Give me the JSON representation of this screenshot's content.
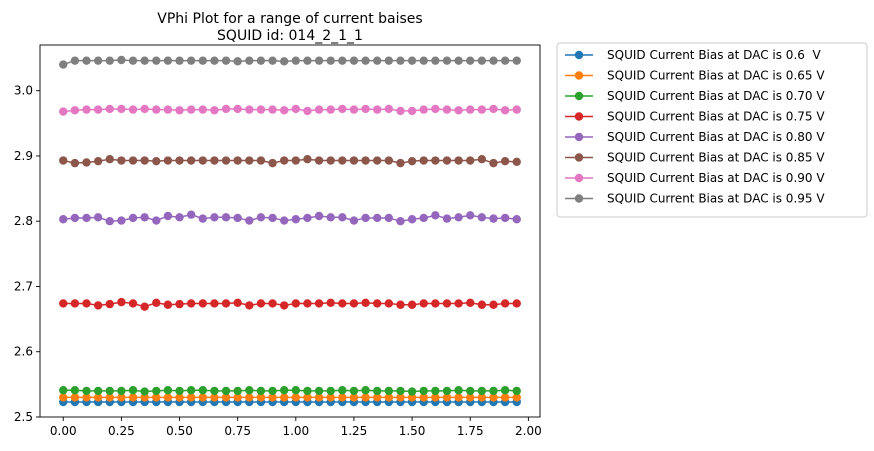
{
  "chart_data": {
    "type": "line",
    "title": "VPhi Plot for a range of current baises",
    "subtitle": "SQUID id: 014_2_1_1",
    "xlabel": "",
    "ylabel": "",
    "xlim": [
      -0.1,
      2.05
    ],
    "ylim": [
      2.5,
      3.07
    ],
    "xticks": [
      "0.00",
      "0.25",
      "0.50",
      "0.75",
      "1.00",
      "1.25",
      "1.50",
      "1.75",
      "2.00"
    ],
    "yticks": [
      "2.5",
      "2.6",
      "2.7",
      "2.8",
      "2.9",
      "3.0"
    ],
    "grid": false,
    "legend_position": "outside-right",
    "x": [
      0.0,
      0.05,
      0.1,
      0.15,
      0.2,
      0.25,
      0.3,
      0.35,
      0.4,
      0.45,
      0.5,
      0.55,
      0.6,
      0.65,
      0.7,
      0.75,
      0.8,
      0.85,
      0.9,
      0.95,
      1.0,
      1.05,
      1.1,
      1.15,
      1.2,
      1.25,
      1.3,
      1.35,
      1.4,
      1.45,
      1.5,
      1.55,
      1.6,
      1.65,
      1.7,
      1.75,
      1.8,
      1.85,
      1.9,
      1.95
    ],
    "series": [
      {
        "name": "SQUID Current Bias at DAC is 0.6  V",
        "color": "#1f77b4",
        "values": [
          2.523,
          2.523,
          2.523,
          2.523,
          2.523,
          2.523,
          2.523,
          2.523,
          2.523,
          2.523,
          2.523,
          2.523,
          2.523,
          2.523,
          2.523,
          2.523,
          2.523,
          2.523,
          2.523,
          2.523,
          2.523,
          2.523,
          2.523,
          2.523,
          2.523,
          2.523,
          2.523,
          2.523,
          2.523,
          2.523,
          2.523,
          2.523,
          2.523,
          2.523,
          2.523,
          2.523,
          2.523,
          2.523,
          2.523,
          2.523
        ]
      },
      {
        "name": "SQUID Current Bias at DAC is 0.65 V",
        "color": "#ff7f0e",
        "values": [
          2.53,
          2.53,
          2.53,
          2.53,
          2.53,
          2.53,
          2.53,
          2.53,
          2.53,
          2.53,
          2.53,
          2.53,
          2.53,
          2.53,
          2.53,
          2.53,
          2.53,
          2.53,
          2.53,
          2.53,
          2.53,
          2.53,
          2.53,
          2.53,
          2.53,
          2.53,
          2.53,
          2.53,
          2.53,
          2.53,
          2.53,
          2.53,
          2.53,
          2.53,
          2.53,
          2.53,
          2.53,
          2.53,
          2.53,
          2.53
        ]
      },
      {
        "name": "SQUID Current Bias at DAC is 0.70 V",
        "color": "#2ca02c",
        "values": [
          2.541,
          2.541,
          2.54,
          2.54,
          2.54,
          2.54,
          2.541,
          2.539,
          2.54,
          2.541,
          2.54,
          2.541,
          2.541,
          2.54,
          2.54,
          2.54,
          2.541,
          2.54,
          2.54,
          2.541,
          2.541,
          2.54,
          2.54,
          2.54,
          2.541,
          2.54,
          2.541,
          2.54,
          2.54,
          2.54,
          2.539,
          2.54,
          2.54,
          2.54,
          2.541,
          2.54,
          2.54,
          2.54,
          2.541,
          2.54
        ]
      },
      {
        "name": "SQUID Current Bias at DAC is 0.75 V",
        "color": "#d62728",
        "values": [
          2.674,
          2.674,
          2.674,
          2.671,
          2.673,
          2.676,
          2.674,
          2.669,
          2.675,
          2.672,
          2.673,
          2.674,
          2.674,
          2.674,
          2.674,
          2.675,
          2.671,
          2.674,
          2.674,
          2.671,
          2.674,
          2.674,
          2.674,
          2.675,
          2.674,
          2.674,
          2.675,
          2.674,
          2.674,
          2.672,
          2.672,
          2.674,
          2.674,
          2.674,
          2.674,
          2.675,
          2.672,
          2.672,
          2.674,
          2.674
        ]
      },
      {
        "name": "SQUID Current Bias at DAC is 0.80 V",
        "color": "#9467bd",
        "values": [
          2.803,
          2.805,
          2.805,
          2.806,
          2.8,
          2.801,
          2.805,
          2.806,
          2.801,
          2.808,
          2.806,
          2.81,
          2.804,
          2.806,
          2.806,
          2.805,
          2.801,
          2.806,
          2.805,
          2.801,
          2.803,
          2.805,
          2.808,
          2.806,
          2.806,
          2.801,
          2.805,
          2.805,
          2.805,
          2.8,
          2.803,
          2.805,
          2.809,
          2.804,
          2.806,
          2.809,
          2.806,
          2.804,
          2.805,
          2.803
        ]
      },
      {
        "name": "SQUID Current Bias at DAC is 0.85 V",
        "color": "#8c564b",
        "values": [
          2.893,
          2.889,
          2.89,
          2.892,
          2.895,
          2.893,
          2.893,
          2.893,
          2.892,
          2.893,
          2.893,
          2.893,
          2.893,
          2.893,
          2.893,
          2.893,
          2.893,
          2.893,
          2.889,
          2.893,
          2.893,
          2.895,
          2.893,
          2.893,
          2.893,
          2.893,
          2.893,
          2.893,
          2.893,
          2.889,
          2.892,
          2.893,
          2.893,
          2.893,
          2.893,
          2.893,
          2.895,
          2.889,
          2.892,
          2.891
        ]
      },
      {
        "name": "SQUID Current Bias at DAC is 0.90 V",
        "color": "#e377c2",
        "values": [
          2.968,
          2.97,
          2.971,
          2.971,
          2.972,
          2.972,
          2.971,
          2.972,
          2.971,
          2.971,
          2.97,
          2.971,
          2.971,
          2.97,
          2.972,
          2.972,
          2.971,
          2.971,
          2.971,
          2.97,
          2.972,
          2.969,
          2.971,
          2.971,
          2.972,
          2.971,
          2.972,
          2.971,
          2.972,
          2.969,
          2.969,
          2.971,
          2.972,
          2.971,
          2.97,
          2.971,
          2.971,
          2.972,
          2.97,
          2.971
        ]
      },
      {
        "name": "SQUID Current Bias at DAC is 0.95 V",
        "color": "#7f7f7f",
        "values": [
          3.04,
          3.046,
          3.046,
          3.046,
          3.046,
          3.047,
          3.046,
          3.046,
          3.046,
          3.046,
          3.046,
          3.046,
          3.046,
          3.046,
          3.046,
          3.045,
          3.046,
          3.046,
          3.046,
          3.045,
          3.046,
          3.046,
          3.046,
          3.046,
          3.046,
          3.046,
          3.046,
          3.046,
          3.046,
          3.046,
          3.046,
          3.046,
          3.046,
          3.046,
          3.046,
          3.046,
          3.046,
          3.046,
          3.046,
          3.046
        ]
      }
    ]
  }
}
